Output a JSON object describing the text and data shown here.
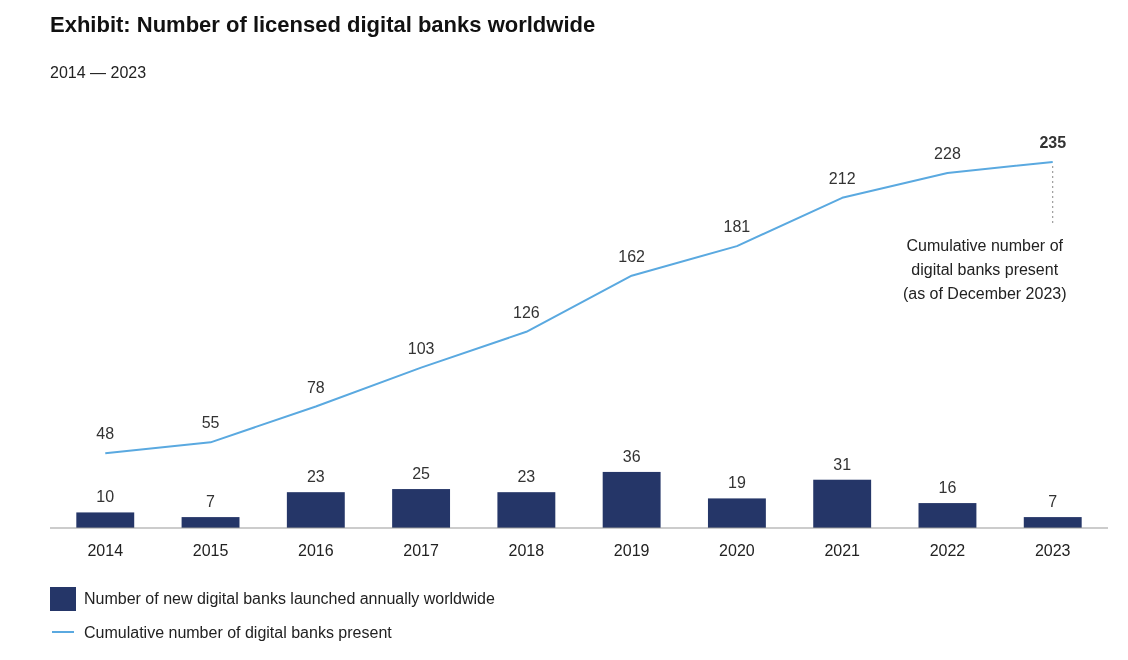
{
  "chart_data": {
    "type": "bar",
    "title": "Exhibit: Number of licensed digital banks worldwide",
    "subtitle": "2014 — 2023",
    "categories": [
      "2014",
      "2015",
      "2016",
      "2017",
      "2018",
      "2019",
      "2020",
      "2021",
      "2022",
      "2023"
    ],
    "series": [
      {
        "name": "Number of new digital banks launched annually worldwide",
        "color": "#253668",
        "values": [
          10,
          7,
          23,
          25,
          23,
          36,
          19,
          31,
          16,
          7
        ]
      },
      {
        "name": "Cumulative number of digital banks present",
        "type": "line",
        "color": "#5aa9e0",
        "values": [
          48,
          55,
          78,
          103,
          126,
          162,
          181,
          212,
          228,
          235
        ]
      }
    ],
    "data_labels": true,
    "legend": "bottom",
    "annotations": [
      {
        "text": "Cumulative number of\ndigital banks present\n(as of December 2023)",
        "x": "2023",
        "y": 235
      }
    ]
  }
}
